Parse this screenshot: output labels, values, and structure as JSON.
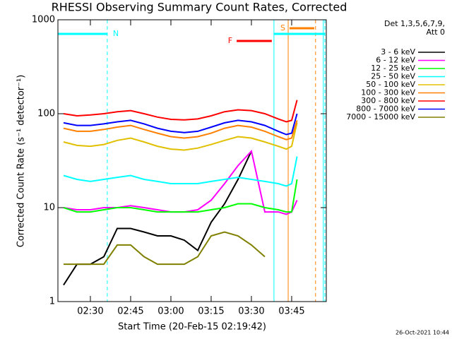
{
  "chart_data": {
    "type": "line",
    "title": "RHESSI Observing Summary Count Rates, Corrected",
    "x_label": "Start Time (20-Feb-15 02:19:42)",
    "y_label": "Corrected Count Rate (s⁻¹ detector⁻¹)",
    "legend_header": [
      "Det 1,3,5,6,7,9,",
      "Att 0"
    ],
    "footer": "26-Oct-2021 10:44",
    "log_y": true,
    "legend": "right",
    "xlim": [
      17.9,
      117.9
    ],
    "ylim": [
      1,
      1000
    ],
    "yticks": [
      1,
      10,
      100,
      1000
    ],
    "xticks": [
      {
        "value": 30,
        "label": "02:30"
      },
      {
        "value": 45,
        "label": "02:45"
      },
      {
        "value": 60,
        "label": "03:00"
      },
      {
        "value": 75,
        "label": "03:15"
      },
      {
        "value": 90,
        "label": "03:30"
      },
      {
        "value": 105,
        "label": "03:45"
      }
    ],
    "x": [
      20,
      25,
      30,
      35,
      40,
      45,
      50,
      55,
      60,
      65,
      70,
      75,
      80,
      85,
      90,
      95,
      100,
      103,
      105,
      107
    ],
    "series": [
      {
        "name": "3 - 6 keV",
        "color": "#000000",
        "values": [
          1.5,
          2.5,
          2.5,
          3,
          6,
          6,
          5.5,
          5,
          5,
          4.5,
          3.5,
          7,
          11,
          20,
          40,
          null,
          null,
          null,
          null,
          null
        ]
      },
      {
        "name": "6 - 12 keV",
        "color": "#ff00ff",
        "values": [
          10,
          9.5,
          9.5,
          10,
          10,
          10.5,
          10,
          9.5,
          9,
          9,
          9.5,
          12,
          18,
          28,
          40,
          9,
          9,
          8.5,
          9,
          12
        ]
      },
      {
        "name": "12 - 25 keV",
        "color": "#00ff00",
        "values": [
          10,
          9,
          9,
          9.5,
          10,
          10,
          9.5,
          9,
          9,
          9,
          9,
          9.5,
          10,
          11,
          11,
          10,
          9.5,
          9,
          9,
          20
        ]
      },
      {
        "name": "25 - 50 keV",
        "color": "#00ffff",
        "values": [
          22,
          20,
          19,
          20,
          21,
          22,
          20,
          19,
          18,
          18,
          18,
          19,
          20,
          21,
          20,
          19,
          18,
          17,
          18,
          35
        ]
      },
      {
        "name": "50 - 100 keV",
        "color": "#e0c000",
        "values": [
          50,
          46,
          45,
          47,
          52,
          55,
          50,
          45,
          42,
          41,
          43,
          47,
          52,
          57,
          55,
          50,
          45,
          42,
          45,
          80
        ]
      },
      {
        "name": "100 - 300 keV",
        "color": "#ff8000",
        "values": [
          70,
          65,
          65,
          68,
          72,
          75,
          68,
          62,
          57,
          55,
          57,
          62,
          70,
          75,
          72,
          65,
          57,
          53,
          55,
          85
        ]
      },
      {
        "name": "300 - 800 keV",
        "color": "#ff0000",
        "values": [
          100,
          95,
          97,
          100,
          105,
          108,
          100,
          92,
          87,
          86,
          88,
          95,
          105,
          110,
          108,
          100,
          88,
          82,
          85,
          140
        ]
      },
      {
        "name": "800 - 7000 keV",
        "color": "#0000ff",
        "values": [
          80,
          75,
          75,
          78,
          82,
          85,
          78,
          70,
          65,
          63,
          65,
          72,
          80,
          85,
          82,
          75,
          65,
          60,
          62,
          100
        ]
      },
      {
        "name": "7000 - 15000 keV",
        "color": "#808000",
        "values": [
          2.5,
          2.5,
          2.5,
          2.5,
          4,
          4,
          3,
          2.5,
          2.5,
          2.5,
          3,
          5,
          5.5,
          5,
          4,
          3,
          null,
          null,
          null,
          null
        ]
      }
    ],
    "flags": [
      {
        "label": "N",
        "color": "#00ffff",
        "xrange": [
          17.9,
          36.3
        ]
      },
      {
        "label": "S",
        "color": "#ff8000",
        "xrange": [
          104.2,
          113.4
        ]
      },
      {
        "label": "F",
        "color": "#ff0000",
        "xrange": [
          84.5,
          97.6
        ]
      },
      {
        "color": "#00ffff",
        "xrange": [
          98.4,
          117.4
        ]
      }
    ],
    "markers": [
      {
        "x": 36.3,
        "color": "#00ffff",
        "dashed": true
      },
      {
        "x": 98.4,
        "color": "#00ffff",
        "dashed": false
      },
      {
        "x": 116.8,
        "color": "#00ffff",
        "dashed": false
      },
      {
        "x": 117.4,
        "color": "#00ffff",
        "dashed": true
      },
      {
        "x": 103.7,
        "color": "#ff8000",
        "dashed": false
      },
      {
        "x": 113.9,
        "color": "#ff8000",
        "dashed": true
      }
    ]
  }
}
